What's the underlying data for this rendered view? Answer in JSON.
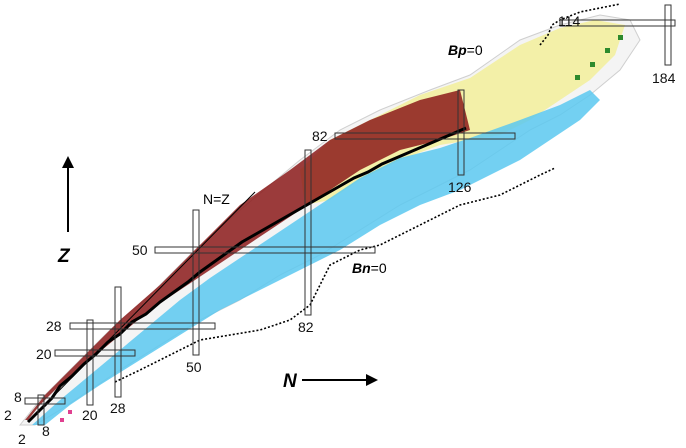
{
  "chart_data": {
    "type": "diagram",
    "labels": {
      "z_axis": "Z",
      "n_axis": "N",
      "nz_line": "N=Z",
      "proton_drip_var": "Bp",
      "proton_drip_val": "=0",
      "neutron_drip_var": "Bn",
      "neutron_drip_val": "=0"
    },
    "magic_numbers": {
      "proton": [
        "2",
        "8",
        "20",
        "28",
        "50",
        "82",
        "114"
      ],
      "neutron": [
        "2",
        "8",
        "20",
        "28",
        "50",
        "82",
        "126",
        "184"
      ]
    },
    "colors": {
      "stable": "#000000",
      "beta_plus": "#8b1a1a",
      "beta_minus": "#5bc8f0",
      "alpha": "#f2ee9a",
      "fission": "#2d8a2d",
      "proton_emission": "#e04090",
      "unknown_outline": "#b0b0b0"
    }
  }
}
